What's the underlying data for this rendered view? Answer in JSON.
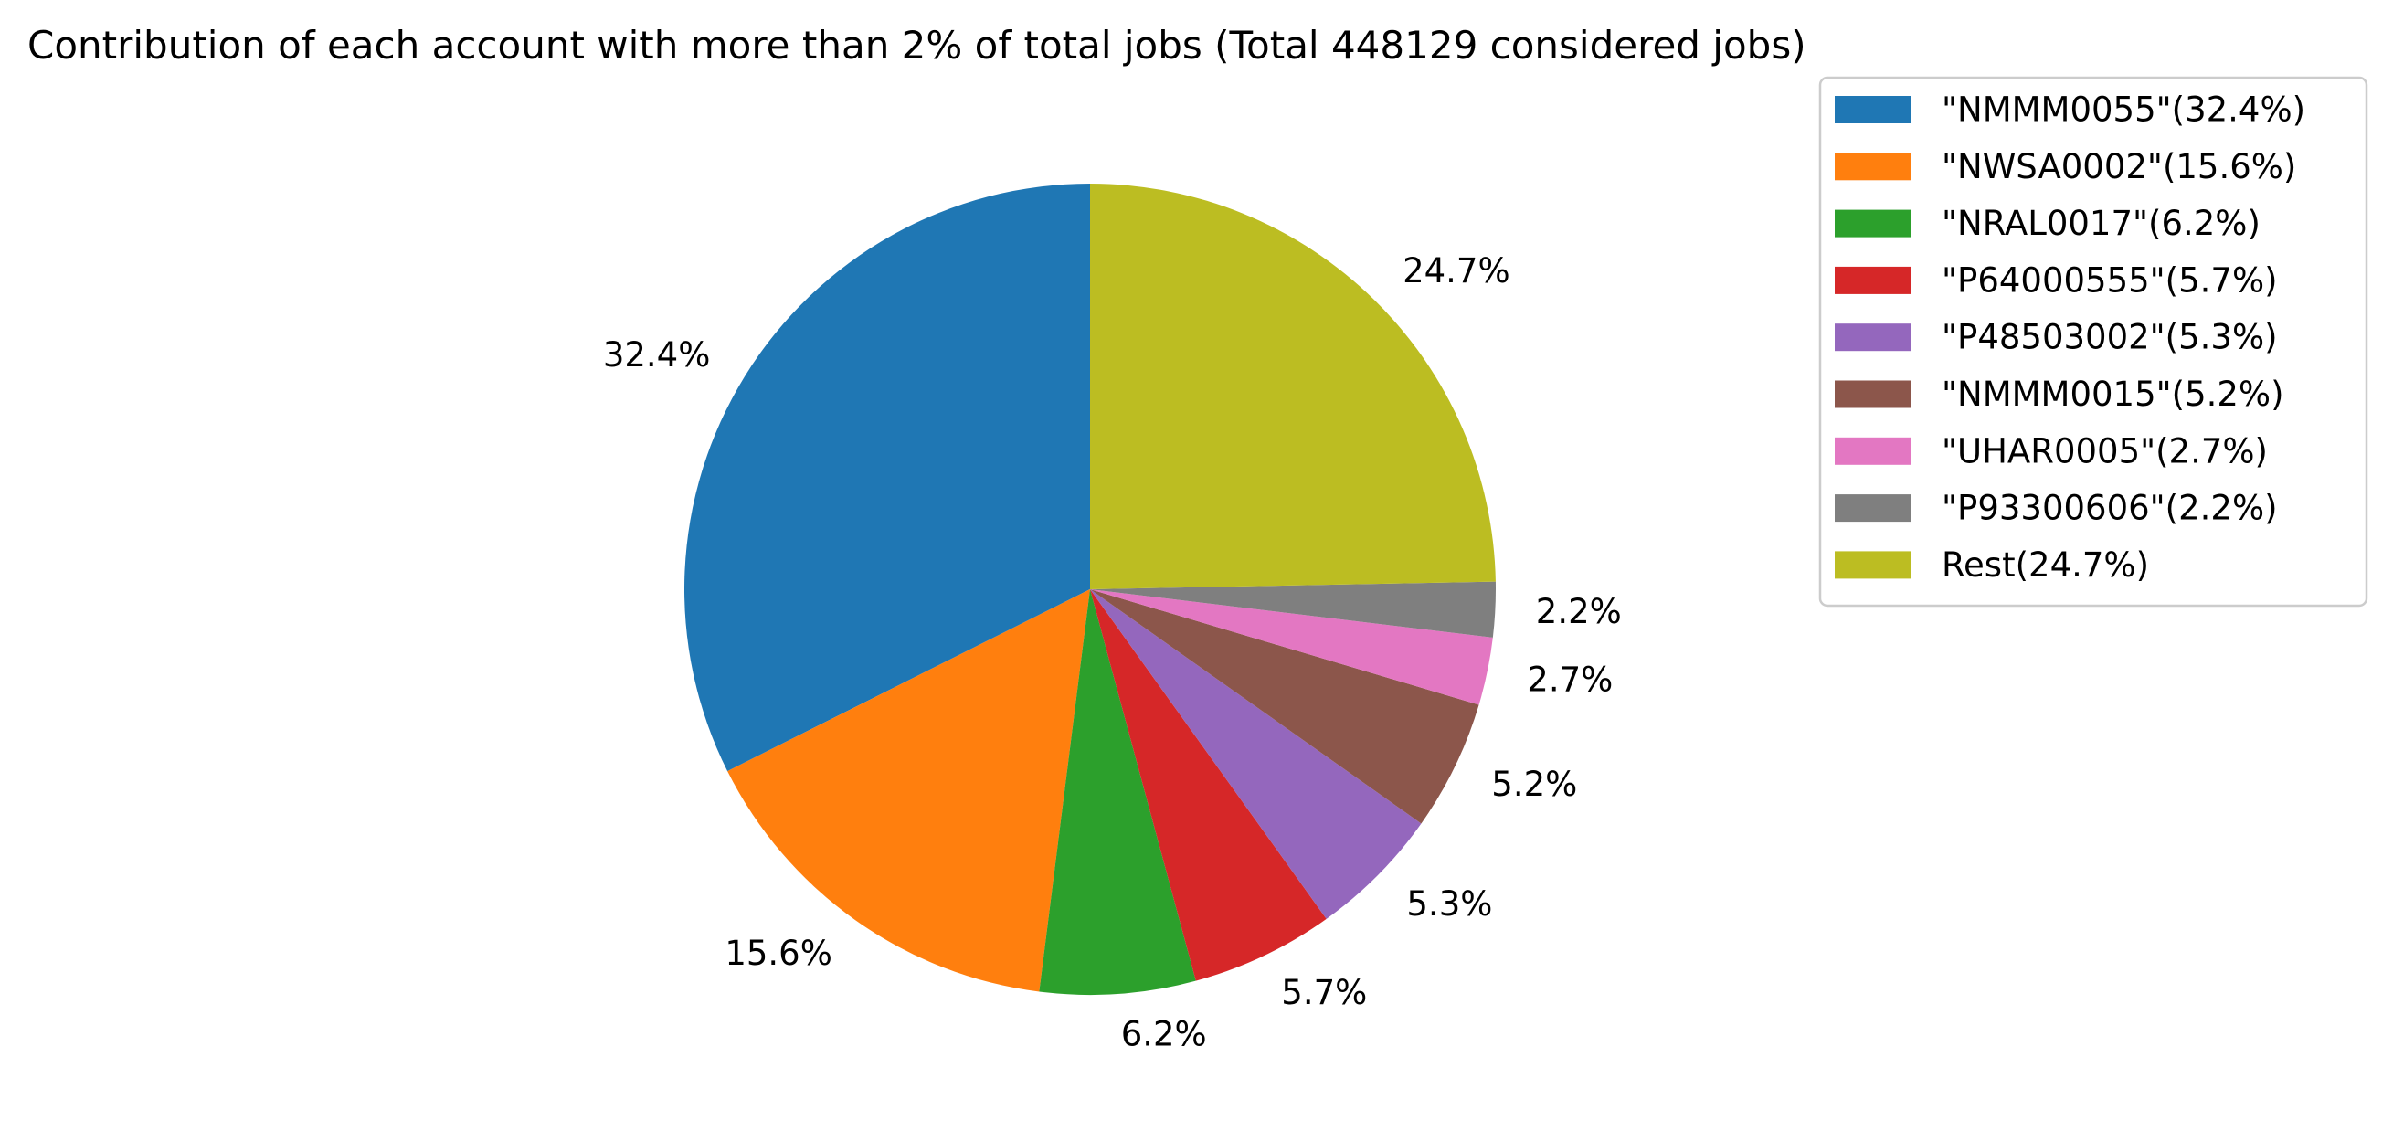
{
  "chart_data": {
    "type": "pie",
    "title": "Contribution of each account with more than 2% of total jobs (Total 448129 considered jobs)",
    "start_angle_deg": 90,
    "direction": "counterclockwise",
    "legend_position": "upper-right, outside plot",
    "slices": [
      {
        "label": "\"NMMM0055\"(32.4%)",
        "value": 32.4,
        "pct_label": "32.4%",
        "color": "#1f77b4"
      },
      {
        "label": "\"NWSA0002\"(15.6%)",
        "value": 15.6,
        "pct_label": "15.6%",
        "color": "#ff7f0e"
      },
      {
        "label": "\"NRAL0017\"(6.2%)",
        "value": 6.2,
        "pct_label": "6.2%",
        "color": "#2ca02c"
      },
      {
        "label": "\"P64000555\"(5.7%)",
        "value": 5.7,
        "pct_label": "5.7%",
        "color": "#d62728"
      },
      {
        "label": "\"P48503002\"(5.3%)",
        "value": 5.3,
        "pct_label": "5.3%",
        "color": "#9467bd"
      },
      {
        "label": "\"NMMM0015\"(5.2%)",
        "value": 5.2,
        "pct_label": "5.2%",
        "color": "#8c564b"
      },
      {
        "label": "\"UHAR0005\"(2.7%)",
        "value": 2.7,
        "pct_label": "2.7%",
        "color": "#e377c2"
      },
      {
        "label": "\"P93300606\"(2.2%)",
        "value": 2.2,
        "pct_label": "2.2%",
        "color": "#7f7f7f"
      },
      {
        "label": "Rest(24.7%)",
        "value": 24.7,
        "pct_label": "24.7%",
        "color": "#bcbd22"
      }
    ]
  }
}
